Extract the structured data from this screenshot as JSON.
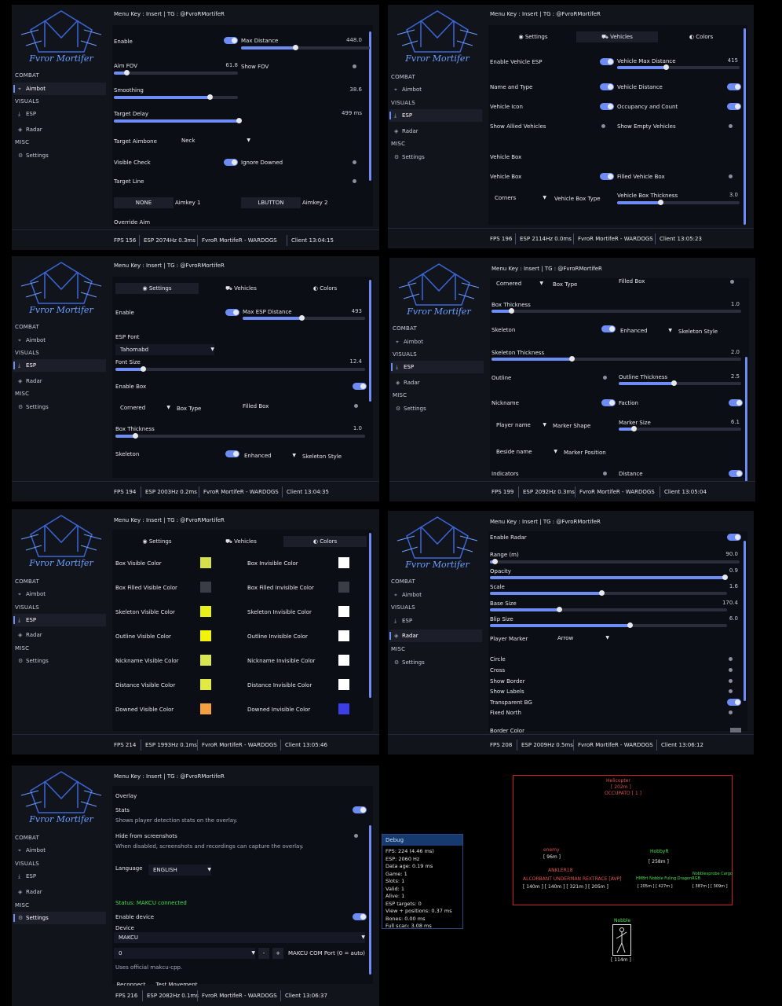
{
  "common": {
    "logo_text": "Fvror Mortifer",
    "menu_key": "Menu Key : Insert | TG : @FvroRMortifeR",
    "cat_combat": "COMBAT",
    "cat_visuals": "VISUALS",
    "cat_misc": "MISC",
    "nav_aimbot": "Aimbot",
    "nav_esp": "ESP",
    "nav_radar": "Radar",
    "nav_settings": "Settings",
    "tab_settings": "Settings",
    "tab_vehicles": "Vehicles",
    "tab_colors": "Colors",
    "game": "FvroR MortifeR - WARDOGS"
  },
  "w1": {
    "fps": "FPS 156",
    "esp": "ESP 2074Hz 0.3ms",
    "client": "Client 13:04:15",
    "enable": "Enable",
    "max_distance": "Max Distance",
    "max_distance_val": "448.0",
    "aim_fov": "Aim FOV",
    "aim_fov_val": "61.8",
    "show_fov": "Show FOV",
    "smoothing": "Smoothing",
    "smoothing_val": "38.6",
    "target_delay": "Target Delay",
    "target_delay_val": "499 ms",
    "target_aimbone": "Target Aimbone",
    "aimbone_val": "Neck",
    "visible_check": "Visible Check",
    "ignore_downed": "Ignore Downed",
    "target_line": "Target Line",
    "key1": "NONE",
    "aimkey1": "Aimkey 1",
    "key2": "LBUTTON",
    "aimkey2": "Aimkey 2",
    "override_aim": "Override Aim",
    "levels": {
      "max_distance": 0.42,
      "aim_fov": 0.1,
      "smoothing": 0.77,
      "target_delay": 0.98
    }
  },
  "w2": {
    "fps": "FPS 196",
    "esp": "ESP 2114Hz 0.0ms",
    "client": "Client 13:05:23",
    "enable_vehicle_esp": "Enable Vehicle ESP",
    "vehicle_max_distance": "Vehicle Max Distance",
    "vehicle_max_distance_val": "415",
    "name_and_type": "Name and Type",
    "vehicle_distance": "Vehicle Distance",
    "vehicle_icon": "Vehicle Icon",
    "occupancy": "Occupancy and Count",
    "show_allied": "Show Allied Vehicles",
    "show_empty": "Show Empty Vehicles",
    "vehicle_box_header": "Vehicle Box",
    "vehicle_box": "Vehicle Box",
    "filled_vehicle_box": "Filled Vehicle Box",
    "box_type_val": "Corners",
    "vehicle_box_type": "Vehicle Box Type",
    "vehicle_box_thickness": "Vehicle Box Thickness",
    "vehicle_box_thickness_val": "3.0",
    "levels": {
      "vehicle_max_distance": 0.4,
      "vehicle_box_thickness": 0.35
    }
  },
  "w3": {
    "fps": "FPS 194",
    "esp": "ESP 2003Hz 0.2ms",
    "client": "Client 13:04:35",
    "enable": "Enable",
    "max_esp_distance": "Max ESP Distance",
    "max_esp_distance_val": "493",
    "esp_font": "ESP Font",
    "font_val": "Tahomabd",
    "font_size": "Font Size",
    "font_size_val": "12.4",
    "enable_box": "Enable Box",
    "box_type_val": "Cornered",
    "box_type": "Box Type",
    "filled_box": "Filled Box",
    "box_thickness": "Box Thickness",
    "box_thickness_val": "1.0",
    "skeleton": "Skeleton",
    "skeleton_style_val": "Enhanced",
    "skeleton_style": "Skeleton Style",
    "levels": {
      "max_esp_distance": 0.48,
      "font_size": 0.11,
      "box_thickness": 0.08
    }
  },
  "w4": {
    "fps": "FPS 199",
    "esp": "ESP 2092Hz 0.3ms",
    "client": "Client 13:05:04",
    "box_type_val": "Cornered",
    "box_type": "Box Type",
    "filled_box": "Filled Box",
    "box_thickness": "Box Thickness",
    "box_thickness_val": "1.0",
    "skeleton": "Skeleton",
    "skeleton_style_val": "Enhanced",
    "skeleton_style": "Skeleton Style",
    "skeleton_thickness": "Skeleton Thickness",
    "skeleton_thickness_val": "2.0",
    "outline": "Outline",
    "outline_thickness": "Outline Thickness",
    "outline_thickness_val": "2.5",
    "nickname": "Nickname",
    "faction": "Faction",
    "marker_shape_val": "Player name",
    "marker_shape": "Marker Shape",
    "marker_size": "Marker Size",
    "marker_size_val": "6.1",
    "marker_position_val": "Beside name",
    "marker_position": "Marker Position",
    "indicators": "Indicators",
    "distance": "Distance",
    "levels": {
      "box_thickness": 0.08,
      "skeleton_thickness": 0.32,
      "outline_thickness": 0.45,
      "marker_size": 0.12
    }
  },
  "w5": {
    "fps": "FPS 214",
    "esp": "ESP 1993Hz 0.1ms",
    "client": "Client 13:05:46",
    "colors": [
      {
        "l": "Box Visible Color",
        "lc": "#d6e04a",
        "r": "Box Invisible Color",
        "rc": "#ffffff"
      },
      {
        "l": "Box Filled Visible Color",
        "lc": "#3a3d45",
        "r": "Box Filled Invisible Color",
        "rc": "#3a3d45"
      },
      {
        "l": "Skeleton Visible Color",
        "lc": "#e8f01a",
        "r": "Skeleton Invisible Color",
        "rc": "#ffffff"
      },
      {
        "l": "Outline Visible Color",
        "lc": "#f2f20a",
        "r": "Outline Invisible Color",
        "rc": "#ffffff"
      },
      {
        "l": "Nickname Visible Color",
        "lc": "#d8e652",
        "r": "Nickname Invisible Color",
        "rc": "#ffffff"
      },
      {
        "l": "Distance Visible Color",
        "lc": "#e0ea40",
        "r": "Distance Invisible Color",
        "rc": "#ffffff"
      },
      {
        "l": "Downed Visible Color",
        "lc": "#f5a040",
        "r": "Downed Invisible Color",
        "rc": "#3b3fe6"
      }
    ]
  },
  "w6": {
    "fps": "FPS 208",
    "esp": "ESP 2009Hz 0.5ms",
    "client": "Client 13:06:12",
    "enable_radar": "Enable Radar",
    "range": "Range (m)",
    "range_val": "90.0",
    "opacity": "Opacity",
    "opacity_val": "0.9",
    "scale": "Scale",
    "scale_val": "1.6",
    "base_size": "Base Size",
    "base_size_val": "170.4",
    "blip_size": "Blip Size",
    "blip_size_val": "6.0",
    "player_marker": "Player Marker",
    "player_marker_val": "Arrow",
    "circle": "Circle",
    "cross": "Cross",
    "show_border": "Show Border",
    "show_labels": "Show Labels",
    "transparent_bg": "Transparent BG",
    "fixed_north": "Fixed North",
    "border_color": "Border Color",
    "levels": {
      "range": 0.02,
      "opacity": 0.99,
      "scale": 0.47,
      "base_size": 0.29,
      "blip_size": 0.59
    }
  },
  "w7": {
    "fps": "FPS 216",
    "esp": "ESP 2082Hz 0.1ms",
    "client": "Client 13:06:37",
    "overlay": "Overlay",
    "stats": "Stats",
    "stats_desc": "Shows player detection stats on the overlay.",
    "hide": "Hide from screenshots",
    "hide_desc": "When disabled, screenshots and recordings can capture the overlay.",
    "language": "Language",
    "language_val": "ENGLISH",
    "status": "Status: MAKCU connected",
    "enable_device": "Enable device",
    "device": "Device",
    "device_val": "MAKCU",
    "port_val": "0",
    "minus": "-",
    "plus": "+",
    "port_label": "MAKCU COM Port (0 = auto)",
    "uses": "Uses official makcu-cpp.",
    "reconnect": "Reconnect",
    "test_movement": "Test Movement"
  },
  "debug": {
    "title": "Debug",
    "lines": [
      "FPS: 224 (4.46 ms)",
      "ESP: 2060 Hz",
      "Data age: 0.19 ms",
      "Game: 1",
      "Slots: 1",
      "Valid: 1",
      "Alive: 1",
      "ESP targets: 0",
      "View + positions: 0.37 ms",
      "Bones: 0.00 ms",
      "Full scan: 3.08 ms"
    ]
  },
  "overlay_preview": {
    "top_name": "Helicopter",
    "top_dist": "[ 202m ]",
    "top_sub": "OCCUPATO [ 1 ]",
    "l_name": "enemy",
    "l_dist": "[ 96m ]",
    "mid_name": "ANKLER18",
    "row_labels": "ALCORBANT  UNDERMAN  REXTRACE  [AVP]",
    "row_dists": "[ 140m ]  [ 140m ]  [ 321m ]  [ 205m ]",
    "c_name": "HobbyR",
    "c_dist": "[ 258m ]",
    "r_name": "HMBrt  Nobble  Fuling  DragonRGB",
    "r_dist": "[ 205m ]  [ 427m ]",
    "rr_name": "Nobblesprobe  Cargo",
    "rr_dist": "[ 387m ]  [ 309m ]",
    "fig_name": "Nobble",
    "fig_dist": "[ 114m ]"
  }
}
